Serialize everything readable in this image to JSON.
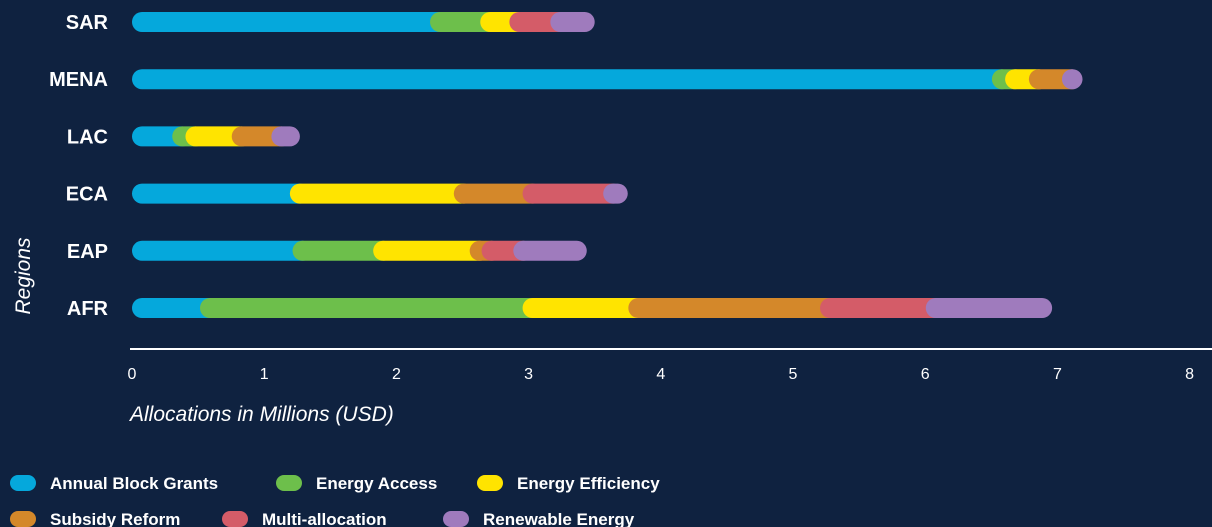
{
  "chart_data": {
    "type": "bar",
    "orientation": "horizontal",
    "stacked": true,
    "categories": [
      "SAR",
      "MENA",
      "LAC",
      "ECA",
      "EAP",
      "AFR"
    ],
    "series": [
      {
        "name": "Annual Block Grants",
        "color": "#05a8dc",
        "values": [
          2.33,
          6.58,
          0.38,
          1.27,
          1.29,
          0.59
        ]
      },
      {
        "name": "Energy Access",
        "color": "#6dbf4b",
        "values": [
          0.38,
          0.1,
          0.1,
          0.0,
          0.61,
          2.44
        ]
      },
      {
        "name": "Energy Efficiency",
        "color": "#ffe400",
        "values": [
          0.22,
          0.18,
          0.35,
          1.24,
          0.73,
          0.8
        ]
      },
      {
        "name": "Subsidy Reform",
        "color": "#d4882a",
        "values": [
          0.0,
          0.25,
          0.3,
          0.52,
          0.09,
          1.45
        ]
      },
      {
        "name": "Multi-allocation",
        "color": "#d45c68",
        "values": [
          0.31,
          0.0,
          0.0,
          0.61,
          0.24,
          0.8
        ]
      },
      {
        "name": "Renewable Energy",
        "color": "#9f7bbd",
        "values": [
          0.26,
          0.08,
          0.14,
          0.11,
          0.48,
          0.88
        ]
      }
    ],
    "xlim": [
      0,
      8
    ],
    "xticks": [
      "0",
      "1",
      "2",
      "3",
      "4",
      "5",
      "6",
      "7",
      "8"
    ],
    "xlabel": "Allocations in Millions (USD)",
    "ylabel": "Regions",
    "legend_position": "bottom"
  },
  "legend": {
    "items": [
      {
        "label": "Annual Block Grants",
        "color": "#05a8dc"
      },
      {
        "label": "Energy Access",
        "color": "#6dbf4b"
      },
      {
        "label": "Energy Efficiency",
        "color": "#ffe400"
      },
      {
        "label": "Subsidy Reform",
        "color": "#d4882a"
      },
      {
        "label": "Multi-allocation",
        "color": "#d45c68"
      },
      {
        "label": "Renewable Energy",
        "color": "#9f7bbd"
      }
    ]
  }
}
